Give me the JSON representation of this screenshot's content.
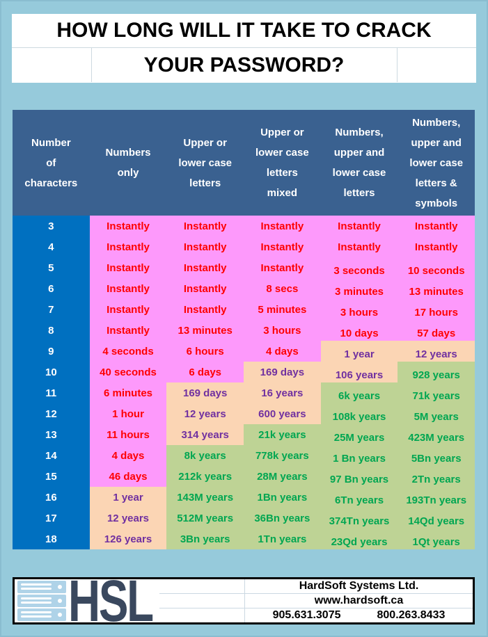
{
  "colors": {
    "bg": "#96CADB",
    "header_blue": "#3A6190",
    "numcol_blue": "#0070C0",
    "pink_bg": "#FD99FB",
    "peach_bg": "#FBD5B4",
    "green_bg": "#BED395",
    "red_text": "#FE0000",
    "purple_text": "#7030A0",
    "green_text": "#00A651",
    "navy": "#3A485E",
    "icon_blue": "#AFD3E8",
    "gridline": "#CBD8E2",
    "banner_line": "#CDD9E0"
  },
  "title": {
    "line1": "HOW LONG WILL IT TAKE TO CRACK",
    "line2": "YOUR PASSWORD?"
  },
  "chart_data": {
    "type": "table",
    "title": "HOW LONG WILL IT TAKE TO CRACK YOUR PASSWORD?",
    "columns": [
      "Number of characters",
      "Numbers only",
      "Upper or lower case letters",
      "Upper or lower case letters mixed",
      "Numbers, upper and lower case letters",
      "Numbers, upper and lower case letters & symbols"
    ],
    "header_lines": [
      [
        "Number",
        "of",
        "characters"
      ],
      [
        "Numbers",
        "only"
      ],
      [
        "Upper or",
        "lower case",
        "letters"
      ],
      [
        "Upper or",
        "lower case",
        "letters",
        "mixed"
      ],
      [
        "Numbers,",
        "upper and",
        "lower case",
        "letters"
      ],
      [
        "Numbers,",
        "upper and",
        "lower case",
        "letters &",
        "symbols"
      ]
    ],
    "rows": [
      [
        "3",
        "Instantly",
        "Instantly",
        "Instantly",
        "Instantly",
        "Instantly"
      ],
      [
        "4",
        "Instantly",
        "Instantly",
        "Instantly",
        "Instantly",
        "Instantly"
      ],
      [
        "5",
        "Instantly",
        "Instantly",
        "Instantly",
        "3 seconds",
        "10 seconds"
      ],
      [
        "6",
        "Instantly",
        "Instantly",
        "8 secs",
        "3 minutes",
        "13 minutes"
      ],
      [
        "7",
        "Instantly",
        "Instantly",
        "5 minutes",
        "3 hours",
        "17 hours"
      ],
      [
        "8",
        "Instantly",
        "13 minutes",
        "3 hours",
        "10 days",
        "57 days"
      ],
      [
        "9",
        "4 seconds",
        "6 hours",
        "4 days",
        "1 year",
        "12 years"
      ],
      [
        "10",
        "40 seconds",
        "6 days",
        "169 days",
        "106 years",
        "928 years"
      ],
      [
        "11",
        "6 minutes",
        "169 days",
        "16 years",
        "6k years",
        "71k years"
      ],
      [
        "12",
        "1 hour",
        "12 years",
        "600 years",
        "108k years",
        "5M years"
      ],
      [
        "13",
        "11 hours",
        "314 years",
        "21k years",
        "25M years",
        "423M years"
      ],
      [
        "14",
        "4 days",
        "8k years",
        "778k years",
        "1 Bn years",
        "5Bn years"
      ],
      [
        "15",
        "46 days",
        "212k years",
        "28M years",
        "97 Bn years",
        "2Tn years"
      ],
      [
        "16",
        "1 year",
        "143M years",
        "1Bn years",
        "6Tn years",
        "193Tn years"
      ],
      [
        "17",
        "12 years",
        "512M years",
        "36Bn years",
        "374Tn years",
        "14Qd years"
      ],
      [
        "18",
        "126 years",
        "3Bn years",
        "1Tn years",
        "23Qd years",
        "1Qt years"
      ]
    ],
    "cell_styles": [
      [
        "pink",
        "pink",
        "pink",
        "pink",
        "pink"
      ],
      [
        "pink",
        "pink",
        "pink",
        "pink",
        "pink"
      ],
      [
        "pink",
        "pink",
        "pink",
        "pink",
        "pink"
      ],
      [
        "pink",
        "pink",
        "pink",
        "pink",
        "pink"
      ],
      [
        "pink",
        "pink",
        "pink",
        "pink",
        "pink"
      ],
      [
        "pink",
        "pink",
        "pink",
        "pink",
        "pink"
      ],
      [
        "pink",
        "pink",
        "pink",
        "peach",
        "peach"
      ],
      [
        "pink",
        "pink",
        "peach",
        "peach",
        "green"
      ],
      [
        "pink",
        "peach",
        "peach",
        "green",
        "green"
      ],
      [
        "pink",
        "peach",
        "peach",
        "green",
        "green"
      ],
      [
        "pink",
        "peach",
        "green",
        "green",
        "green"
      ],
      [
        "pink",
        "green",
        "green",
        "green",
        "green"
      ],
      [
        "pink",
        "green",
        "green",
        "green",
        "green"
      ],
      [
        "peach",
        "green",
        "green",
        "green",
        "green"
      ],
      [
        "peach",
        "green",
        "green",
        "green",
        "green"
      ],
      [
        "peach",
        "green",
        "green",
        "green",
        "green"
      ]
    ],
    "legend_note": "pink cells = red text, peach cells = purple text, green cells = green text"
  },
  "footer": {
    "logo_text": "HSL",
    "logo_icon": "server-stack-icon",
    "company": "HardSoft Systems Ltd.",
    "website": "www.hardsoft.ca",
    "phone_left": "905.631.3075",
    "phone_right": "800.263.8433"
  }
}
